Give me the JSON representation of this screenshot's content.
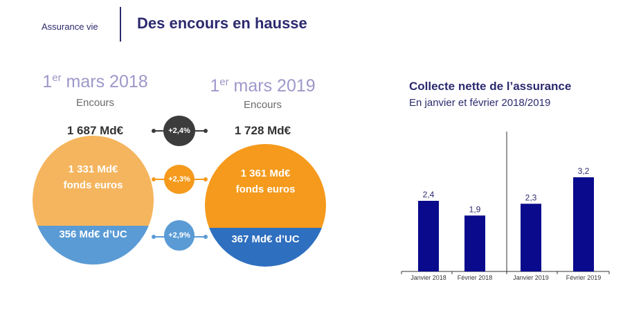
{
  "header": {
    "section": "Assurance vie",
    "title": "Des encours en hausse"
  },
  "left": {
    "date_sup": "er",
    "date_prefix": "1",
    "date_rest": " mars 2018",
    "encours_label": "Encours",
    "total": "1 687 Md€",
    "fonds_euros_value": "1 331 Md€",
    "fonds_euros_label": "fonds euros",
    "uc": "356 Md€ d’UC",
    "colors": {
      "top": "#f5b55e",
      "bottom": "#5a9bd5"
    }
  },
  "right": {
    "date_sup": "er",
    "date_prefix": "1",
    "date_rest": " mars 2019",
    "encours_label": "Encours",
    "total": "1 728 Md€",
    "fonds_euros_value": "1 361 Md€",
    "fonds_euros_label": "fonds euros",
    "uc": "367 Md€ d’UC",
    "colors": {
      "top": "#f59a1c",
      "bottom": "#2e6fbf"
    }
  },
  "growth": {
    "total": {
      "label": "+2,4%",
      "color": "#3c3c3c"
    },
    "fonds_euros": {
      "label": "+2,3%",
      "color": "#f59a1c"
    },
    "uc": {
      "label": "+2,9%",
      "color": "#5a9bd5"
    }
  },
  "chart_data": {
    "type": "bar",
    "title": "Collecte nette de l’assurance",
    "subtitle": "En janvier et février 2018/2019",
    "categories": [
      "Janvier 2018",
      "Février 2018",
      "Janvier 2019",
      "Février 2019"
    ],
    "values": [
      2.4,
      1.9,
      2.3,
      3.2
    ],
    "value_labels": [
      "2,4",
      "1,9",
      "2,3",
      "3,2"
    ],
    "ylim": [
      0,
      4
    ],
    "grid": false,
    "bar_color": "#0a0a8c",
    "separator_between": [
      1,
      2
    ]
  }
}
